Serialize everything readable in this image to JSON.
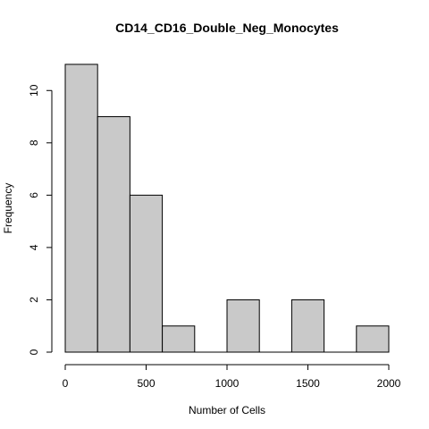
{
  "chart_data": {
    "type": "bar",
    "title": "CD14_CD16_Double_Neg_Monocytes",
    "xlabel": "Number of Cells",
    "ylabel": "Frequency",
    "bins": [
      {
        "from": 0,
        "to": 200,
        "count": 11
      },
      {
        "from": 200,
        "to": 400,
        "count": 9
      },
      {
        "from": 400,
        "to": 600,
        "count": 6
      },
      {
        "from": 600,
        "to": 800,
        "count": 1
      },
      {
        "from": 800,
        "to": 1000,
        "count": 0
      },
      {
        "from": 1000,
        "to": 1200,
        "count": 2
      },
      {
        "from": 1200,
        "to": 1400,
        "count": 0
      },
      {
        "from": 1400,
        "to": 1600,
        "count": 2
      },
      {
        "from": 1600,
        "to": 1800,
        "count": 0
      },
      {
        "from": 1800,
        "to": 2000,
        "count": 1
      }
    ],
    "xlim": [
      0,
      2000
    ],
    "ylim": [
      0,
      11
    ],
    "xticks": [
      0,
      500,
      1000,
      1500,
      2000
    ],
    "yticks": [
      0,
      2,
      4,
      6,
      8,
      10
    ],
    "grid": false,
    "colors": {
      "bar_fill": "#c9c9c9",
      "bar_stroke": "#000000"
    }
  }
}
